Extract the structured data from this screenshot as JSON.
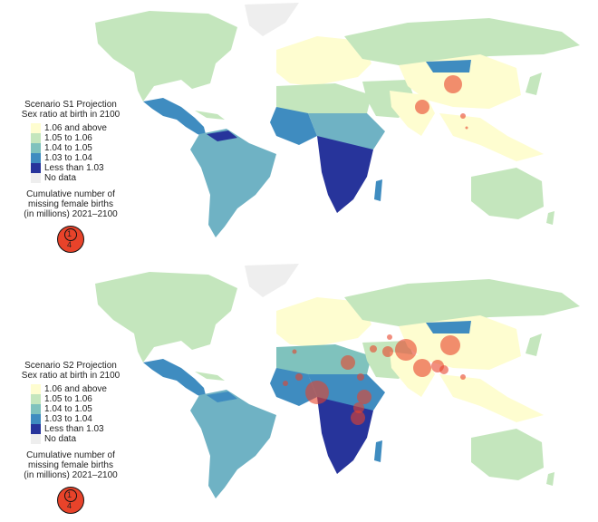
{
  "legend_items": [
    {
      "label": "1.06 and above",
      "color": "#fefdd0"
    },
    {
      "label": "1.05 to 1.06",
      "color": "#c4e6bd"
    },
    {
      "label": "1.04 to 1.05",
      "color": "#7fc2bd"
    },
    {
      "label": "1.03 to 1.04",
      "color": "#3f8cc0"
    },
    {
      "label": "Less than 1.03",
      "color": "#27349b"
    },
    {
      "label": "No data",
      "color": "#eeeeee"
    }
  ],
  "bubble_color": "#e8432a",
  "size_legend": {
    "large": "4",
    "small": "1"
  },
  "cumulative_label": {
    "line1": "Cumulative number of",
    "line2": "missing female births",
    "line3": "(in millions) 2021–2100"
  },
  "panels": [
    {
      "id": "S1",
      "title_line1": "Scenario S1 Projection",
      "title_line2": "Sex ratio at birth in 2100",
      "bubbles": [
        {
          "region": "China",
          "value": 2.3
        },
        {
          "region": "India",
          "value": 1.6
        },
        {
          "region": "Taiwan area",
          "value": 0.25
        },
        {
          "region": "Small East Asia",
          "value": 0.1
        }
      ]
    },
    {
      "id": "S2",
      "title_line1": "Scenario S2 Projection",
      "title_line2": "Sex ratio at birth in 2100",
      "bubbles": [
        {
          "region": "China",
          "value": 2.2
        },
        {
          "region": "Pakistan/Afghanistan",
          "value": 2.4
        },
        {
          "region": "India",
          "value": 1.8
        },
        {
          "region": "Nigeria",
          "value": 2.6
        },
        {
          "region": "Egypt",
          "value": 1.2
        },
        {
          "region": "Ethiopia",
          "value": 1.2
        },
        {
          "region": "Bangladesh",
          "value": 1.0
        },
        {
          "region": "Myanmar",
          "value": 0.8
        },
        {
          "region": "Iraq",
          "value": 0.6
        },
        {
          "region": "Iran",
          "value": 0.9
        },
        {
          "region": "Sudan",
          "value": 0.6
        },
        {
          "region": "Tanzania",
          "value": 1.0
        },
        {
          "region": "Kenya",
          "value": 0.7
        },
        {
          "region": "Niger",
          "value": 0.4
        },
        {
          "region": "Senegal",
          "value": 0.3
        },
        {
          "region": "Morocco",
          "value": 0.25
        },
        {
          "region": "Uzbekistan",
          "value": 0.3
        }
      ]
    }
  ]
}
